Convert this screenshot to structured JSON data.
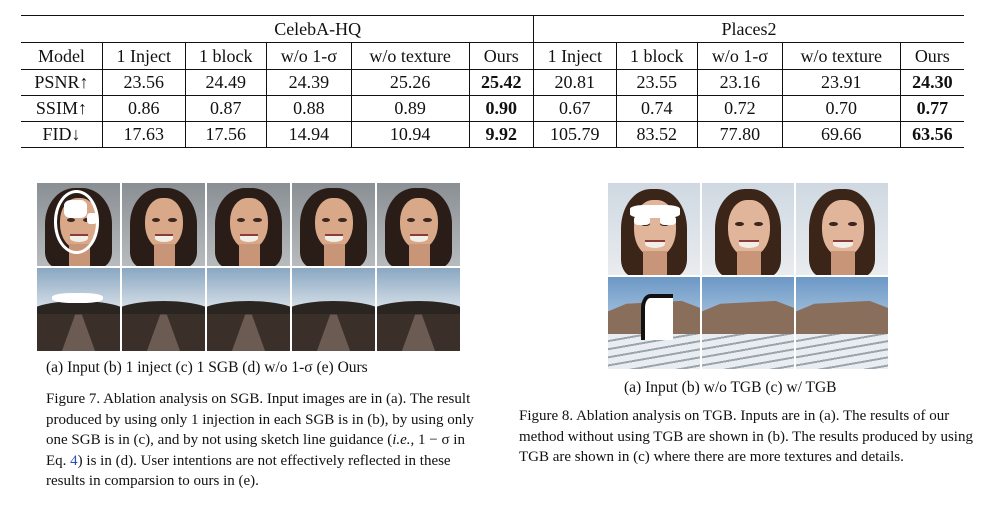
{
  "table": {
    "groups": [
      "CelebA-HQ",
      "Places2"
    ],
    "columns": [
      "Model",
      "1 Inject",
      "1 block",
      "w/o 1-σ",
      "w/o texture",
      "Ours",
      "1 Inject",
      "1 block",
      "w/o 1-σ",
      "w/o texture",
      "Ours"
    ],
    "rows": [
      {
        "metric": "PSNR↑",
        "values": [
          "23.56",
          "24.49",
          "24.39",
          "25.26",
          "25.42",
          "20.81",
          "23.55",
          "23.16",
          "23.91",
          "24.30"
        ]
      },
      {
        "metric": "SSIM↑",
        "values": [
          "0.86",
          "0.87",
          "0.88",
          "0.89",
          "0.90",
          "0.67",
          "0.74",
          "0.72",
          "0.70",
          "0.77"
        ]
      },
      {
        "metric": "FID↓",
        "values": [
          "17.63",
          "17.56",
          "14.94",
          "10.94",
          "9.92",
          "105.79",
          "83.52",
          "77.80",
          "69.66",
          "63.56"
        ]
      }
    ]
  },
  "figure7": {
    "sublabels": "(a) Input  (b) 1 inject  (c) 1 SGB  (d) w/o 1-σ  (e) Ours",
    "caption_lead": "Figure 7. Ablation analysis on SGB. Input images are in (a). The result produced by using only 1 injection in each SGB is in (b), by using only one SGB is in (c), and by not using sketch line guidance (",
    "caption_ie": "i.e.",
    "caption_mid": ", 1 − σ in Eq. ",
    "caption_ref": "4",
    "caption_tail": ") is in (d). User intentions are not effectively reflected in these results in comparsion to ours in (e)."
  },
  "figure8": {
    "sublabels": "(a) Input   (b) w/o TGB  (c) w/ TGB",
    "caption": "Figure 8. Ablation analysis on TGB. Inputs are in (a). The results of our method without using TGB are shown in (b). The results produced by using TGB are shown in (c) where there are more textures and details."
  }
}
